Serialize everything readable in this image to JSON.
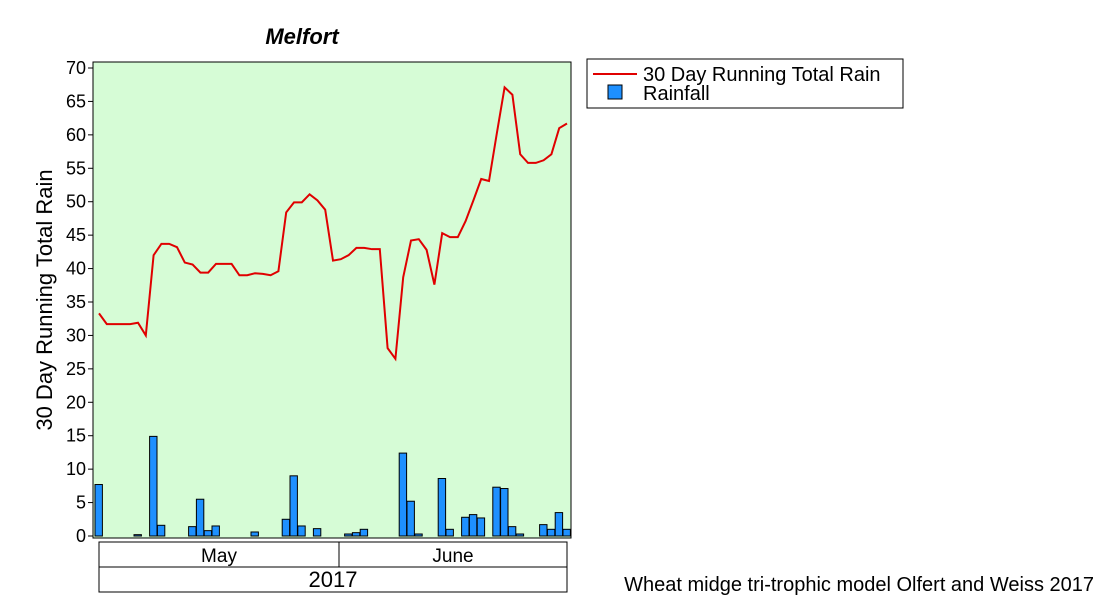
{
  "colors": {
    "plot_background": "#d6fcd6",
    "line": "#e00000",
    "bar": "#1e90ff",
    "bar_edge": "#000000"
  },
  "legend": {
    "position": "right",
    "line_label": "30 Day Running Total Rain",
    "bar_label": "Rainfall"
  },
  "footer": "Wheat midge tri-trophic model Olfert and Weiss 2017",
  "chart_data": {
    "type": "bar+line",
    "title": "Melfort",
    "ylabel": "30 Day Running Total Rain",
    "xlabel": "",
    "ylim": [
      0,
      70
    ],
    "yticks": [
      0,
      5,
      10,
      15,
      20,
      25,
      30,
      35,
      40,
      45,
      50,
      55,
      60,
      65,
      70
    ],
    "grid": false,
    "x_start_date": "2017-05-01",
    "x_end_date": "2017-06-30",
    "x_groups": [
      {
        "label": "May",
        "start_day": 1,
        "end_day": 31
      },
      {
        "label": "June",
        "start_day": 32,
        "end_day": 61
      }
    ],
    "year_label": "2017",
    "series": [
      {
        "name": "30 Day Running Total Rain",
        "kind": "line",
        "points": [
          [
            1,
            33.3
          ],
          [
            2,
            31.7
          ],
          [
            3,
            31.7
          ],
          [
            4,
            31.7
          ],
          [
            5,
            31.7
          ],
          [
            6,
            31.9
          ],
          [
            7,
            30.0
          ],
          [
            8,
            42.0
          ],
          [
            9,
            43.7
          ],
          [
            10,
            43.7
          ],
          [
            11,
            43.2
          ],
          [
            12,
            40.9
          ],
          [
            13,
            40.6
          ],
          [
            14,
            39.4
          ],
          [
            15,
            39.4
          ],
          [
            16,
            40.7
          ],
          [
            17,
            40.7
          ],
          [
            18,
            40.7
          ],
          [
            19,
            39.0
          ],
          [
            20,
            39.0
          ],
          [
            21,
            39.3
          ],
          [
            22,
            39.2
          ],
          [
            23,
            39.0
          ],
          [
            24,
            39.6
          ],
          [
            25,
            48.4
          ],
          [
            26,
            49.9
          ],
          [
            27,
            49.9
          ],
          [
            28,
            51.1
          ],
          [
            29,
            50.2
          ],
          [
            30,
            48.8
          ],
          [
            31,
            41.2
          ],
          [
            32,
            41.4
          ],
          [
            33,
            42.0
          ],
          [
            34,
            43.1
          ],
          [
            35,
            43.1
          ],
          [
            36,
            42.9
          ],
          [
            37,
            42.9
          ],
          [
            38,
            28.1
          ],
          [
            39,
            26.5
          ],
          [
            40,
            38.7
          ],
          [
            41,
            44.2
          ],
          [
            42,
            44.4
          ],
          [
            43,
            42.8
          ],
          [
            44,
            37.6
          ],
          [
            45,
            45.3
          ],
          [
            46,
            44.7
          ],
          [
            47,
            44.7
          ],
          [
            48,
            47.1
          ],
          [
            49,
            50.2
          ],
          [
            50,
            53.4
          ],
          [
            51,
            53.1
          ],
          [
            52,
            60.2
          ],
          [
            53,
            67.1
          ],
          [
            54,
            66.0
          ],
          [
            55,
            57.1
          ],
          [
            56,
            55.8
          ],
          [
            57,
            55.8
          ],
          [
            58,
            56.2
          ],
          [
            59,
            57.1
          ],
          [
            60,
            61.0
          ],
          [
            61,
            61.7
          ]
        ]
      },
      {
        "name": "Rainfall",
        "kind": "bar",
        "points": [
          [
            1,
            7.7
          ],
          [
            6,
            0.2
          ],
          [
            8,
            14.9
          ],
          [
            9,
            1.6
          ],
          [
            13,
            1.4
          ],
          [
            14,
            5.5
          ],
          [
            15,
            0.8
          ],
          [
            16,
            1.5
          ],
          [
            21,
            0.6
          ],
          [
            25,
            2.5
          ],
          [
            26,
            9.0
          ],
          [
            27,
            1.5
          ],
          [
            29,
            1.1
          ],
          [
            33,
            0.3
          ],
          [
            34,
            0.5
          ],
          [
            35,
            1.0
          ],
          [
            40,
            12.4
          ],
          [
            41,
            5.2
          ],
          [
            42,
            0.3
          ],
          [
            45,
            8.6
          ],
          [
            46,
            1.0
          ],
          [
            48,
            2.8
          ],
          [
            49,
            3.2
          ],
          [
            50,
            2.7
          ],
          [
            52,
            7.3
          ],
          [
            53,
            7.1
          ],
          [
            54,
            1.4
          ],
          [
            55,
            0.3
          ],
          [
            58,
            1.7
          ],
          [
            59,
            1.0
          ],
          [
            60,
            3.5
          ],
          [
            61,
            1.0
          ]
        ]
      }
    ]
  }
}
